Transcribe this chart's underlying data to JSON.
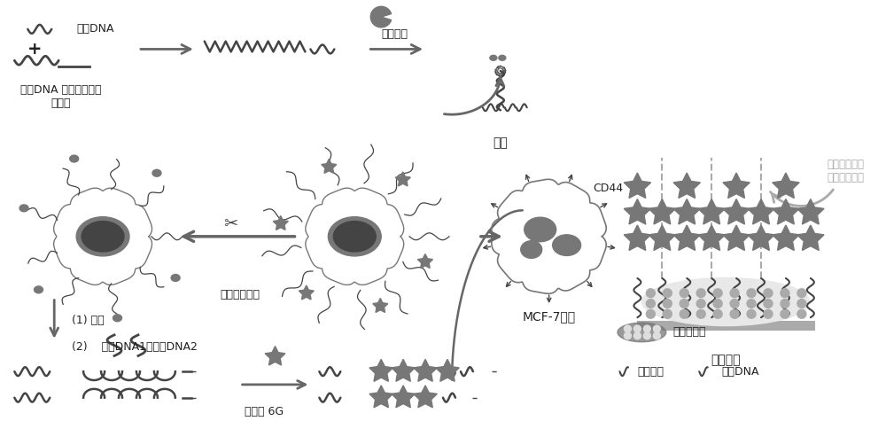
{
  "bg_color": "#ffffff",
  "fig_width": 10.0,
  "fig_height": 4.75,
  "dpi": 100,
  "labels": {
    "lian_jie_DNA": "连接DNA",
    "gong_neng_DNA": "功能DNA 杂交链式反应\n引发链",
    "tou_ming_zhi_suan": "透明质酸",
    "tan_zhen": "探针",
    "CD44": "CD44",
    "MCF7": "MCF-7细胞",
    "xian_zhi": "限制性内切酶",
    "li_xin": "(1) 离心",
    "fa_ka": "(2)    发卡DNA1和发卡DNA2",
    "luo_dan": "罗丹明 6G",
    "bo_tan": "玻碳电极",
    "dian_zhi": "电致化学发光\n共振能力转移",
    "na_mi": "纳米复合物",
    "shu_ji": "疏基己醇",
    "bu_huo": "捕获DNA"
  },
  "gray_dark": "#444444",
  "gray_mid": "#777777",
  "gray_light": "#aaaaaa",
  "gray_lighter": "#dddddd",
  "gray_text": "#222222",
  "arrow_color": "#666666"
}
